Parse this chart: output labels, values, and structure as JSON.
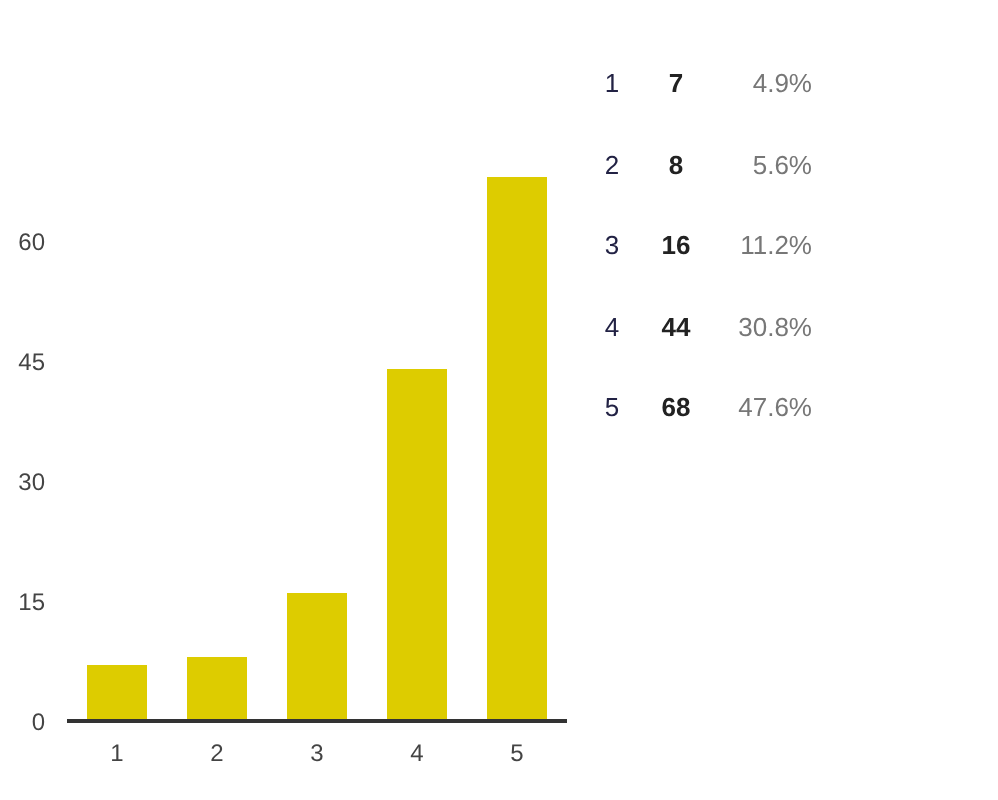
{
  "chart_data": {
    "type": "bar",
    "categories": [
      "1",
      "2",
      "3",
      "4",
      "5"
    ],
    "values": [
      7,
      8,
      16,
      44,
      68
    ],
    "color": "#ddcc00",
    "ylim": [
      0,
      68
    ],
    "yticks": [
      0,
      15,
      30,
      45,
      60
    ],
    "grid": false,
    "annotations": [
      "1",
      "7",
      "4.9%",
      "2",
      "8",
      "5.6%",
      "3",
      "16",
      "11.2%",
      "4",
      "44",
      "30.8%",
      "5",
      "68",
      "47.6%"
    ]
  }
}
